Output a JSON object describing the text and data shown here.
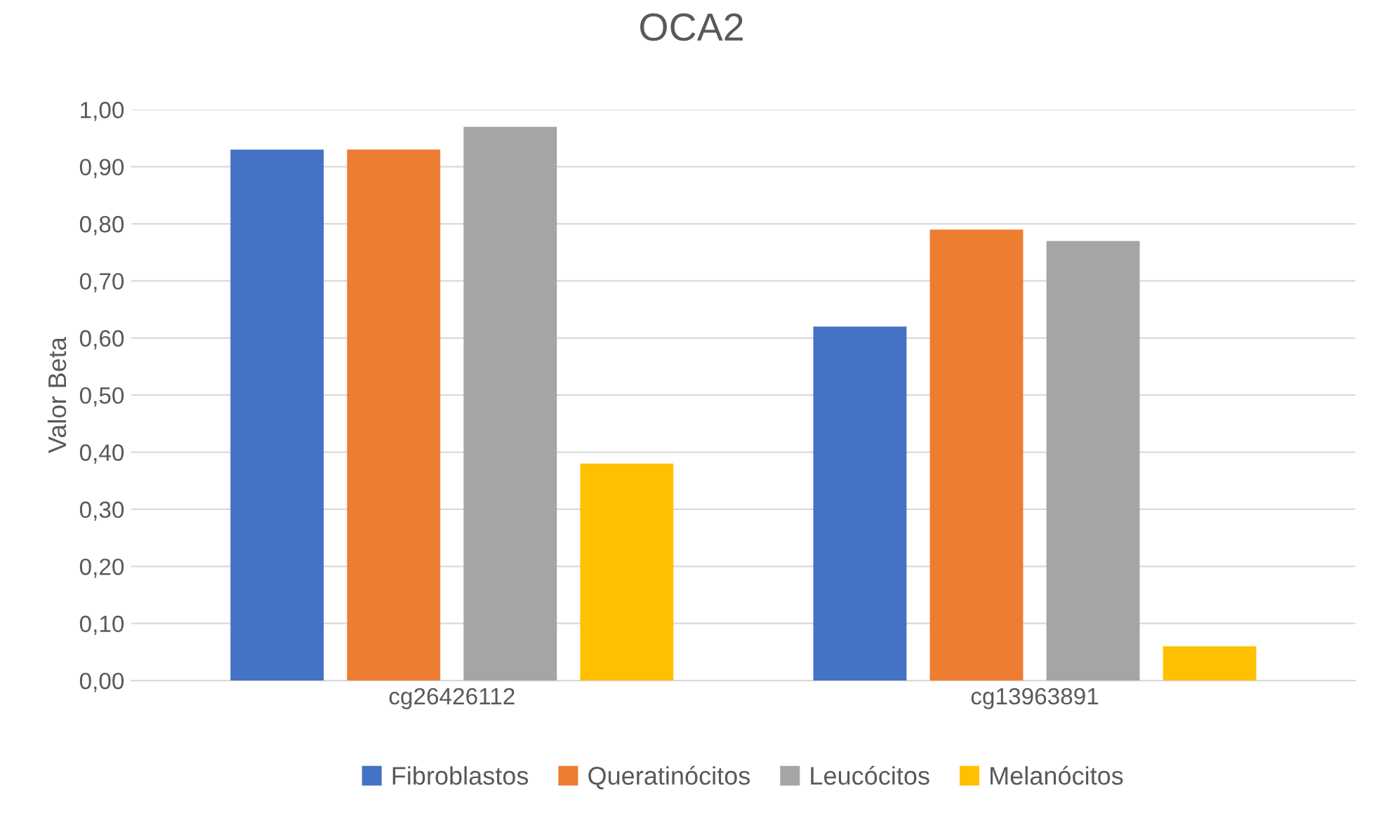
{
  "chart_data": {
    "type": "bar",
    "title": "OCA2",
    "ylabel": "Valor Beta",
    "categories": [
      "cg26426112",
      "cg13963891"
    ],
    "series": [
      {
        "name": "Fibroblastos",
        "color": "#4472c4",
        "values": [
          0.93,
          0.62
        ]
      },
      {
        "name": "Queratinócitos",
        "color": "#ed7d31",
        "values": [
          0.93,
          0.79
        ]
      },
      {
        "name": "Leucócitos",
        "color": "#a5a5a5",
        "values": [
          0.97,
          0.77
        ]
      },
      {
        "name": "Melanócitos",
        "color": "#ffc000",
        "values": [
          0.38,
          0.06
        ]
      }
    ],
    "ylim": [
      0,
      1
    ],
    "yticks": [
      {
        "value": 0,
        "label": "0,00"
      },
      {
        "value": 0.1,
        "label": "0,10"
      },
      {
        "value": 0.2,
        "label": "0,20"
      },
      {
        "value": 0.3,
        "label": "0,30"
      },
      {
        "value": 0.4,
        "label": "0,40"
      },
      {
        "value": 0.5,
        "label": "0,50"
      },
      {
        "value": 0.6,
        "label": "0,60"
      },
      {
        "value": 0.7,
        "label": "0,70"
      },
      {
        "value": 0.8,
        "label": "0,80"
      },
      {
        "value": 0.9,
        "label": "0,90"
      },
      {
        "value": 1,
        "label": "1,00"
      }
    ],
    "grid": "y",
    "legend": "bottom"
  }
}
